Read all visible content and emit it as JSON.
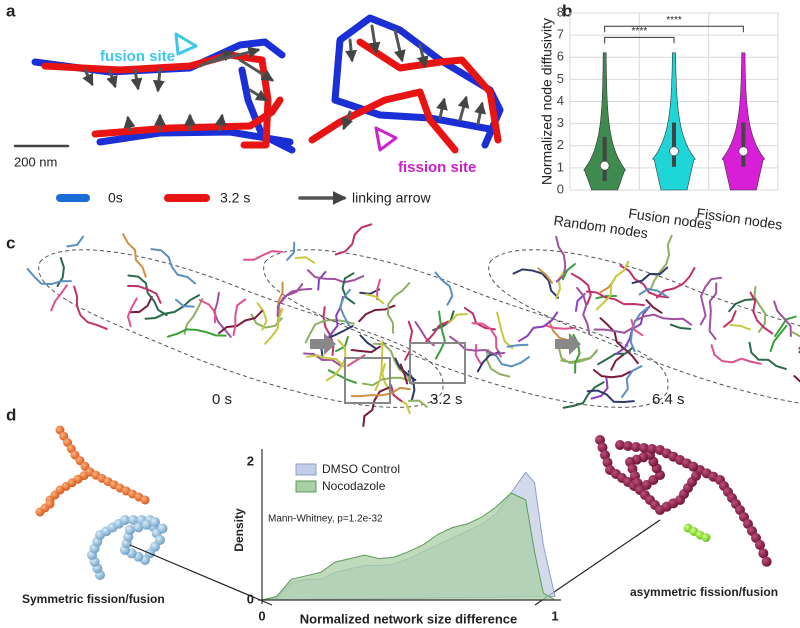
{
  "panel_labels": [
    "a",
    "b",
    "c",
    "d"
  ],
  "panel_a": {
    "fusion_label": "fusion site",
    "fission_label": "fission site",
    "scale_bar": "200 nm",
    "legend": [
      "0s",
      "3.2 s",
      "linking arrow"
    ]
  },
  "panel_c": {
    "time_labels": [
      "0 s",
      "3.2 s",
      "6.4 s"
    ]
  },
  "panel_d": {
    "left_caption": "Symmetric fission/fusion",
    "right_caption": "asymmetric fission/fusion"
  },
  "chart_data": [
    {
      "type": "violin",
      "y_label": "Normalized node diffusivity",
      "categories": [
        "Random nodes",
        "Fusion nodes",
        "Fission nodes"
      ],
      "values": [
        1.1,
        1.75,
        1.75
      ],
      "max": [
        6.2,
        6.2,
        6.2
      ],
      "colors": [
        "#3f8a4f",
        "#1ed6d8",
        "#d61fd6"
      ],
      "ylim": [
        0,
        8
      ],
      "yticks": [
        0,
        1,
        2,
        3,
        4,
        5,
        6,
        7,
        8
      ],
      "grid": true,
      "brackets": [
        {
          "label": "****",
          "y": 6.9
        },
        {
          "label": "****",
          "y": 7.4
        }
      ]
    },
    {
      "type": "area",
      "x_label": "Normalized network size difference",
      "y_label": "Density",
      "annotation": "Mann-Whitney,  p=1.2e-32",
      "x": [
        0,
        0.05,
        0.1,
        0.15,
        0.2,
        0.25,
        0.3,
        0.35,
        0.4,
        0.45,
        0.5,
        0.55,
        0.6,
        0.65,
        0.7,
        0.75,
        0.8,
        0.85,
        0.9,
        0.93,
        0.96,
        1.0
      ],
      "series": [
        {
          "name": "DMSO Control",
          "color": "#c3cde6",
          "values": [
            0,
            0.03,
            0.25,
            0.3,
            0.3,
            0.4,
            0.45,
            0.5,
            0.5,
            0.52,
            0.6,
            0.7,
            0.8,
            0.9,
            1.0,
            1.1,
            1.25,
            1.55,
            1.85,
            1.7,
            0.8,
            0.05
          ]
        },
        {
          "name": "Nocodazole",
          "color": "#a9cfa5",
          "values": [
            0,
            0.05,
            0.3,
            0.35,
            0.4,
            0.55,
            0.6,
            0.65,
            0.6,
            0.62,
            0.7,
            0.8,
            0.95,
            1.05,
            1.1,
            1.2,
            1.35,
            1.55,
            1.45,
            0.7,
            0.1,
            0
          ]
        }
      ],
      "xlim": [
        0,
        1
      ],
      "ylim": [
        0,
        2.1
      ],
      "xticks": [
        0,
        1
      ],
      "yticks": [
        0,
        2
      ]
    }
  ]
}
